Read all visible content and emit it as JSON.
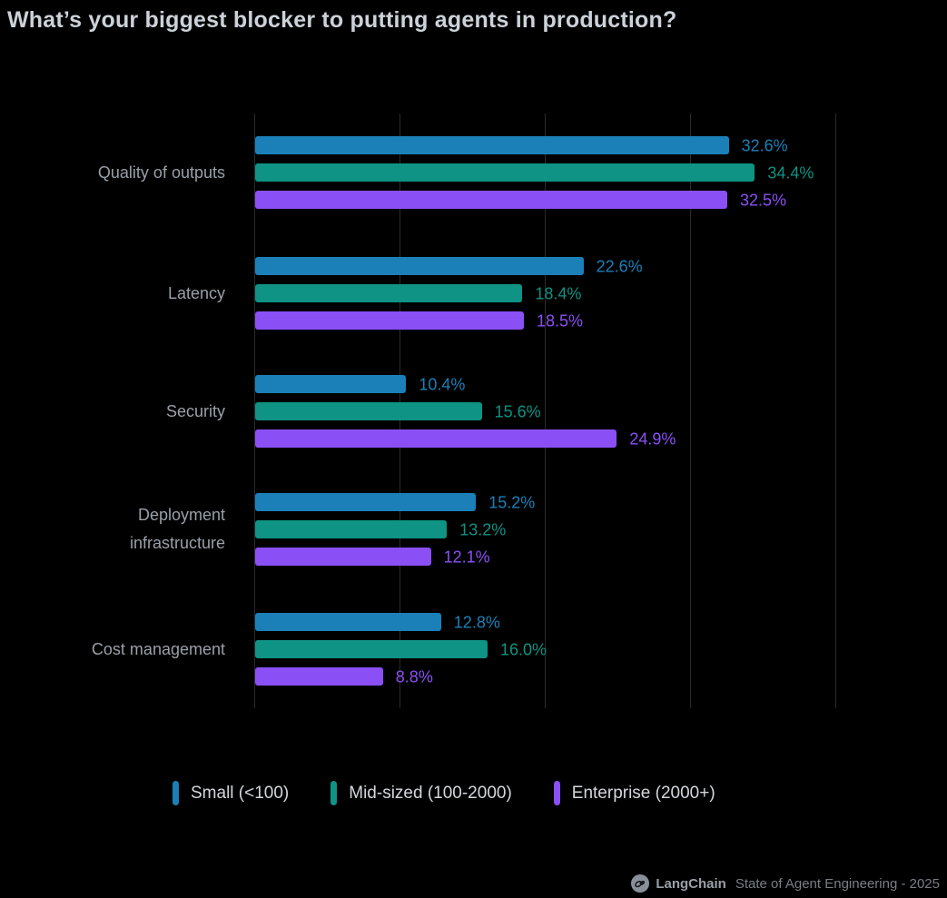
{
  "title": "What’s your biggest blocker to putting agents in production?",
  "colors": {
    "background": "#000000",
    "gridline": "#2b2b2b",
    "title_text": "#ccd2d9",
    "category_text": "#99a0a8"
  },
  "chart_data": {
    "type": "bar",
    "orientation": "horizontal",
    "title": "What’s your biggest blocker to putting agents in production?",
    "categories": [
      "Quality of outputs",
      "Latency",
      "Security",
      "Deployment infrastructure",
      "Cost management"
    ],
    "series": [
      {
        "name": "Small (<100)",
        "color": "#1b80b8",
        "values": [
          32.6,
          22.6,
          10.4,
          15.2,
          12.8
        ],
        "labels": [
          "32.6%",
          "22.6%",
          "10.4%",
          "15.2%",
          "12.8%"
        ]
      },
      {
        "name": "Mid-sized (100-2000)",
        "color": "#0e9384",
        "values": [
          34.4,
          18.4,
          15.6,
          13.2,
          16.0
        ],
        "labels": [
          "34.4%",
          "18.4%",
          "15.6%",
          "13.2%",
          "16.0%"
        ]
      },
      {
        "name": "Enterprise (2000+)",
        "color": "#8b4ff6",
        "values": [
          32.5,
          18.5,
          24.9,
          12.1,
          8.8
        ],
        "labels": [
          "32.5%",
          "18.5%",
          "24.9%",
          "12.1%",
          "8.8%"
        ]
      }
    ],
    "xlim": [
      0,
      40
    ],
    "gridlines": [
      0,
      10,
      20,
      30,
      40
    ],
    "value_suffix": "%",
    "grid": true,
    "legend_position": "bottom"
  },
  "footer": {
    "brand": "LangChain",
    "text": "State of Agent Engineering - 2025"
  }
}
